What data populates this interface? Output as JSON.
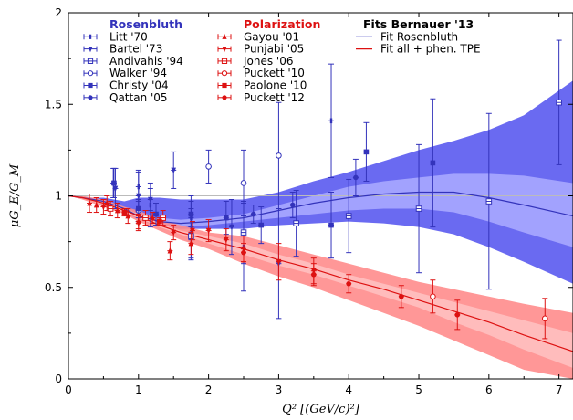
{
  "chart_data": {
    "type": "scatter",
    "xlabel": "Q² [(GeV/c)²]",
    "ylabel": "μG_E/G_M",
    "xlim": [
      0,
      7.2
    ],
    "ylim": [
      0,
      2
    ],
    "x_ticks": [
      "0",
      "1",
      "2",
      "3",
      "4",
      "5",
      "6",
      "7"
    ],
    "y_ticks": [
      "0",
      "0.5",
      "1",
      "1.5",
      "2"
    ],
    "colors": {
      "rosenbluth": "#3333bb",
      "polarization": "#dd1111",
      "rosen_band_outer": "#5a5af0",
      "rosen_band_inner": "#a8a8ff",
      "pol_band_outer": "#ff8c8c",
      "pol_band_inner": "#ffc0c0"
    },
    "legend": {
      "groups": [
        {
          "title": "Rosenbluth",
          "color": "#3333bb",
          "entries": [
            "Litt '70",
            "Bartel '73",
            "Andivahis '94",
            "Walker '94",
            "Christy '04",
            "Qattan '05"
          ]
        },
        {
          "title": "Polarization",
          "color": "#dd1111",
          "entries": [
            "Gayou '01",
            "Punjabi '05",
            "Jones '06",
            "Puckett '10",
            "Paolone '10",
            "Puckett '12"
          ]
        },
        {
          "title": "Fits Bernauer '13",
          "color": "#000000",
          "entries": [
            "Fit Rosenbluth",
            "Fit all + phen. TPE"
          ]
        }
      ]
    },
    "series": [
      {
        "name": "Litt '70",
        "group": "rosenbluth",
        "marker": "bar",
        "points": [
          [
            0.64,
            1.07,
            0.08
          ],
          [
            1.0,
            1.05,
            0.08
          ],
          [
            1.17,
            0.95,
            0.12
          ],
          [
            1.75,
            0.88,
            0.12
          ],
          [
            2.5,
            0.72,
            0.24
          ],
          [
            3.75,
            1.41,
            0.31
          ]
        ]
      },
      {
        "name": "Bartel '73",
        "group": "rosenbluth",
        "marker": "tri_down",
        "points": [
          [
            0.67,
            1.04,
            0.11
          ],
          [
            1.0,
            1.0,
            0.14
          ],
          [
            1.17,
            0.98,
            0.06
          ],
          [
            1.5,
            1.14,
            0.1
          ],
          [
            1.75,
            0.79,
            0.14
          ],
          [
            2.33,
            0.83,
            0.15
          ],
          [
            3.0,
            0.63,
            0.3
          ]
        ]
      },
      {
        "name": "Andivahis '94",
        "group": "rosenbluth",
        "marker": "square_open_bar",
        "points": [
          [
            1.75,
            0.78,
            0.12
          ],
          [
            2.5,
            0.8,
            0.17
          ],
          [
            3.25,
            0.85,
            0.18
          ],
          [
            4.0,
            0.89,
            0.2
          ],
          [
            5.0,
            0.93,
            0.35
          ],
          [
            6.0,
            0.97,
            0.48
          ],
          [
            7.0,
            1.51,
            0.34
          ]
        ]
      },
      {
        "name": "Walker '94",
        "group": "rosenbluth",
        "marker": "circle_open",
        "points": [
          [
            1.0,
            0.92,
            0.06
          ],
          [
            2.0,
            1.16,
            0.09
          ],
          [
            2.5,
            1.07,
            0.18
          ],
          [
            3.0,
            1.22,
            0.29
          ]
        ]
      },
      {
        "name": "Christy '04",
        "group": "rosenbluth",
        "marker": "square",
        "points": [
          [
            0.65,
            1.07,
            0.08
          ],
          [
            1.0,
            0.93,
            0.05
          ],
          [
            1.25,
            0.9,
            0.06
          ],
          [
            1.75,
            0.9,
            0.07
          ],
          [
            2.25,
            0.88,
            0.09
          ],
          [
            2.75,
            0.84,
            0.1
          ],
          [
            3.75,
            0.84,
            0.18
          ],
          [
            4.25,
            1.24,
            0.16
          ],
          [
            5.2,
            1.18,
            0.35
          ]
        ]
      },
      {
        "name": "Qattan '05",
        "group": "rosenbluth",
        "marker": "circle",
        "points": [
          [
            2.64,
            0.9,
            0.05
          ],
          [
            3.2,
            0.95,
            0.07
          ],
          [
            4.1,
            1.1,
            0.1
          ]
        ]
      },
      {
        "name": "Gayou '01",
        "group": "polarization",
        "marker": "tri_up",
        "points": [
          [
            0.3,
            0.96,
            0.05
          ],
          [
            0.4,
            0.95,
            0.04
          ],
          [
            0.55,
            0.96,
            0.04
          ],
          [
            0.7,
            0.92,
            0.04
          ],
          [
            0.85,
            0.89,
            0.04
          ],
          [
            1.0,
            0.86,
            0.04
          ],
          [
            1.2,
            0.88,
            0.03
          ],
          [
            1.45,
            0.7,
            0.05
          ],
          [
            1.75,
            0.74,
            0.06
          ]
        ]
      },
      {
        "name": "Punjabi '05",
        "group": "polarization",
        "marker": "tri_down",
        "points": [
          [
            0.5,
            0.94,
            0.04
          ],
          [
            1.0,
            0.85,
            0.04
          ],
          [
            1.5,
            0.8,
            0.04
          ],
          [
            1.77,
            0.81,
            0.05
          ],
          [
            2.0,
            0.81,
            0.06
          ],
          [
            2.25,
            0.76,
            0.06
          ],
          [
            2.5,
            0.71,
            0.07
          ],
          [
            3.0,
            0.64,
            0.1
          ],
          [
            3.5,
            0.59,
            0.07
          ]
        ]
      },
      {
        "name": "Jones '06",
        "group": "polarization",
        "marker": "square_open_bar",
        "points": [
          [
            0.6,
            0.93,
            0.04
          ],
          [
            1.1,
            0.88,
            0.04
          ],
          [
            1.35,
            0.88,
            0.04
          ]
        ]
      },
      {
        "name": "Puckett '10",
        "group": "polarization",
        "marker": "circle_open",
        "points": [
          [
            5.2,
            0.45,
            0.09
          ],
          [
            6.8,
            0.33,
            0.11
          ]
        ]
      },
      {
        "name": "Paolone '10",
        "group": "polarization",
        "marker": "square",
        "points": [
          [
            1.3,
            0.86,
            0.02
          ],
          [
            0.8,
            0.91,
            0.02
          ]
        ]
      },
      {
        "name": "Puckett '12",
        "group": "polarization",
        "marker": "circle",
        "points": [
          [
            2.5,
            0.69,
            0.05
          ],
          [
            3.5,
            0.57,
            0.06
          ],
          [
            4.0,
            0.52,
            0.05
          ],
          [
            4.75,
            0.45,
            0.06
          ],
          [
            5.55,
            0.35,
            0.08
          ]
        ]
      }
    ],
    "fits": [
      {
        "name": "Fit Rosenbluth",
        "group": "rosenbluth",
        "x": [
          0,
          0.2,
          0.5,
          0.8,
          1.0,
          1.3,
          1.6,
          2.0,
          2.5,
          3.0,
          3.5,
          4.0,
          4.5,
          5.0,
          5.5,
          6.0,
          6.5,
          7.2
        ],
        "central": [
          1.0,
          0.99,
          0.97,
          0.93,
          0.89,
          0.86,
          0.85,
          0.86,
          0.88,
          0.92,
          0.96,
          0.99,
          1.01,
          1.02,
          1.02,
          0.99,
          0.95,
          0.89
        ],
        "inner_low": [
          1.0,
          0.99,
          0.96,
          0.92,
          0.88,
          0.84,
          0.83,
          0.84,
          0.86,
          0.88,
          0.9,
          0.92,
          0.93,
          0.93,
          0.91,
          0.86,
          0.8,
          0.72
        ],
        "inner_high": [
          1.0,
          0.99,
          0.98,
          0.94,
          0.9,
          0.88,
          0.87,
          0.88,
          0.9,
          0.95,
          1.0,
          1.05,
          1.08,
          1.1,
          1.12,
          1.12,
          1.11,
          1.07
        ],
        "outer_low": [
          1.0,
          0.99,
          0.96,
          0.91,
          0.87,
          0.83,
          0.82,
          0.82,
          0.82,
          0.84,
          0.85,
          0.86,
          0.85,
          0.83,
          0.79,
          0.72,
          0.64,
          0.52
        ],
        "outer_high": [
          1.0,
          0.99,
          0.99,
          0.97,
          0.99,
          0.99,
          0.98,
          0.98,
          0.98,
          1.02,
          1.08,
          1.13,
          1.19,
          1.25,
          1.3,
          1.36,
          1.44,
          1.63
        ]
      },
      {
        "name": "Fit all + phen. TPE",
        "group": "polarization",
        "x": [
          0,
          0.2,
          0.5,
          0.8,
          1.0,
          1.3,
          1.6,
          2.0,
          2.5,
          3.0,
          3.5,
          4.0,
          4.5,
          5.0,
          5.5,
          6.0,
          6.5,
          7.2
        ],
        "central": [
          1.0,
          0.99,
          0.96,
          0.92,
          0.89,
          0.84,
          0.8,
          0.76,
          0.71,
          0.65,
          0.6,
          0.54,
          0.49,
          0.43,
          0.37,
          0.31,
          0.24,
          0.15
        ],
        "inner_low": [
          1.0,
          0.99,
          0.95,
          0.91,
          0.88,
          0.83,
          0.79,
          0.74,
          0.68,
          0.62,
          0.57,
          0.51,
          0.45,
          0.39,
          0.31,
          0.24,
          0.16,
          0.06
        ],
        "inner_high": [
          1.0,
          0.99,
          0.97,
          0.93,
          0.9,
          0.85,
          0.81,
          0.78,
          0.74,
          0.68,
          0.63,
          0.57,
          0.52,
          0.47,
          0.42,
          0.37,
          0.32,
          0.25
        ],
        "outer_low": [
          1.0,
          0.98,
          0.94,
          0.9,
          0.86,
          0.81,
          0.76,
          0.71,
          0.63,
          0.56,
          0.5,
          0.43,
          0.36,
          0.29,
          0.21,
          0.13,
          0.05,
          0.0
        ],
        "outer_high": [
          1.0,
          1.0,
          0.98,
          0.94,
          0.92,
          0.87,
          0.84,
          0.8,
          0.78,
          0.73,
          0.68,
          0.63,
          0.58,
          0.53,
          0.49,
          0.45,
          0.41,
          0.36
        ]
      }
    ]
  }
}
